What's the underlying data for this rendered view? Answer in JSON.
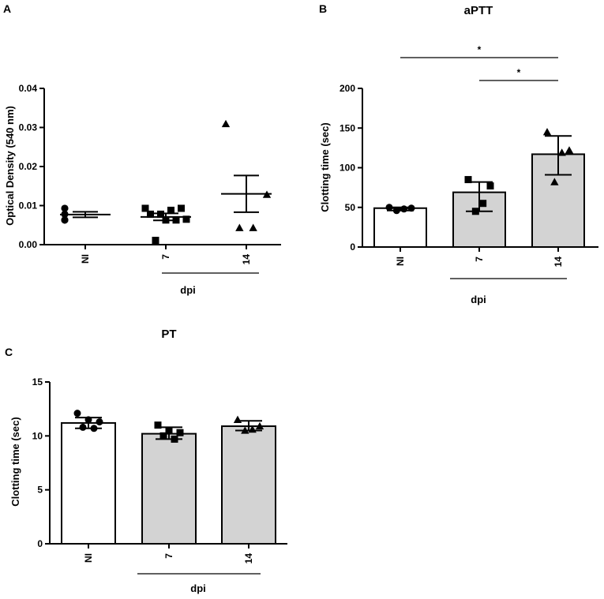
{
  "colors": {
    "axis": "#000000",
    "bar_ni": "#ffffff",
    "bar_infected": "#d3d3d3"
  },
  "chart_data": [
    {
      "panel": "A",
      "type": "scatter",
      "title": "",
      "ylabel": "Optical Density (540 nm)",
      "xlabel": "dpi",
      "categories": [
        "NI",
        "7",
        "14"
      ],
      "ylim": [
        0,
        0.04
      ],
      "yticks": [
        0.0,
        0.01,
        0.02,
        0.03,
        0.04
      ],
      "ytick_labels": [
        "0.00",
        "0.01",
        "0.02",
        "0.03",
        "0.04"
      ],
      "markers": [
        "circle",
        "square",
        "triangle"
      ],
      "groups": [
        {
          "category": "NI",
          "mean": 0.0077,
          "sem": 0.0007,
          "points": [
            0.0093,
            0.0093,
            0.0078,
            0.0078,
            0.0063,
            0.0063,
            0.0063
          ]
        },
        {
          "category": "7",
          "mean": 0.0071,
          "sem": 0.0009,
          "points": [
            0.0093,
            0.0093,
            0.0088,
            0.0078,
            0.0078,
            0.0065,
            0.0063,
            0.0063,
            0.0011
          ]
        },
        {
          "category": "14",
          "mean": 0.013,
          "sem": 0.0047,
          "points": [
            0.0309,
            0.0128,
            0.0043,
            0.0043
          ]
        }
      ]
    },
    {
      "panel": "B",
      "type": "bar",
      "title": "aPTT",
      "ylabel": "Clotting time (sec)",
      "xlabel": "dpi",
      "categories": [
        "NI",
        "7",
        "14"
      ],
      "ylim": [
        0,
        200
      ],
      "yticks": [
        0,
        50,
        100,
        150,
        200
      ],
      "ytick_labels": [
        "0",
        "50",
        "100",
        "150",
        "200"
      ],
      "markers": [
        "circle",
        "square",
        "triangle"
      ],
      "groups": [
        {
          "category": "NI",
          "mean": 49,
          "err_low": 46,
          "err_high": 50,
          "points": [
            50,
            49,
            48,
            46
          ]
        },
        {
          "category": "7",
          "mean": 69,
          "err_low": 45,
          "err_high": 82,
          "points": [
            85,
            77,
            55,
            45
          ]
        },
        {
          "category": "14",
          "mean": 117,
          "err_low": 91,
          "err_high": 140,
          "points": [
            145,
            122,
            119,
            82
          ]
        }
      ],
      "significance": [
        {
          "from": "NI",
          "to": "14",
          "label": "*"
        },
        {
          "from": "7",
          "to": "14",
          "label": "*"
        }
      ]
    },
    {
      "panel": "C",
      "type": "bar",
      "title": "PT",
      "ylabel": "Clotting time (sec)",
      "xlabel": "dpi",
      "categories": [
        "NI",
        "7",
        "14"
      ],
      "ylim": [
        0,
        15
      ],
      "yticks": [
        0,
        5,
        10,
        15
      ],
      "ytick_labels": [
        "0",
        "5",
        "10",
        "15"
      ],
      "markers": [
        "circle",
        "square",
        "triangle"
      ],
      "groups": [
        {
          "category": "NI",
          "mean": 11.2,
          "err_low": 10.7,
          "err_high": 11.7,
          "points": [
            12.1,
            11.5,
            11.3,
            10.8,
            10.7
          ]
        },
        {
          "category": "7",
          "mean": 10.2,
          "err_low": 9.7,
          "err_high": 10.8,
          "points": [
            11.0,
            10.5,
            10.3,
            10.0,
            9.7
          ]
        },
        {
          "category": "14",
          "mean": 10.9,
          "err_low": 10.5,
          "err_high": 11.4,
          "points": [
            11.5,
            10.9,
            10.6,
            10.5
          ]
        }
      ]
    }
  ]
}
